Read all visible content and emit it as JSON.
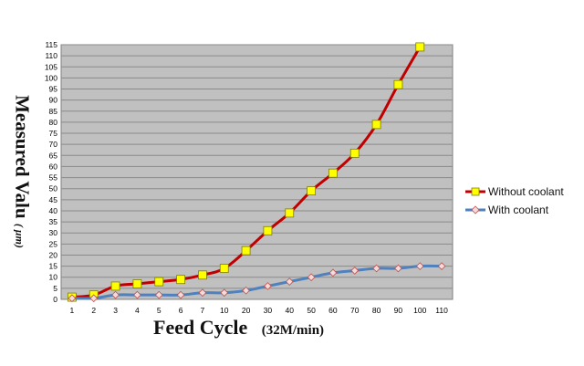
{
  "chart_data": {
    "type": "line",
    "title": "",
    "xlabel": "Feed Cycle",
    "xlabel_unit": "(32M/min)",
    "ylabel": "Measured Valu",
    "ylabel_unit": "( μm)",
    "categories": [
      "1",
      "2",
      "3",
      "4",
      "5",
      "6",
      "7",
      "10",
      "20",
      "30",
      "40",
      "50",
      "60",
      "70",
      "80",
      "90",
      "100",
      "110"
    ],
    "y_ticks": [
      0,
      5,
      10,
      15,
      20,
      25,
      30,
      35,
      40,
      45,
      50,
      55,
      60,
      65,
      70,
      75,
      80,
      85,
      90,
      95,
      100,
      105,
      110,
      115
    ],
    "ylim": [
      0,
      115
    ],
    "grid": true,
    "legend_position": "right",
    "series": [
      {
        "name": "Without  coolant",
        "color": "#c00000",
        "marker": "square",
        "marker_color": "#ffff00",
        "values": [
          1,
          2,
          6,
          7,
          8,
          9,
          11,
          14,
          22,
          31,
          39,
          49,
          57,
          66,
          79,
          97,
          114,
          null
        ]
      },
      {
        "name": "With coolant",
        "color": "#4f81bd",
        "marker": "diamond",
        "marker_color": "#f2dcdb",
        "values": [
          0.5,
          0.5,
          2,
          2,
          2,
          2,
          3,
          3,
          4,
          6,
          8,
          10,
          12,
          13,
          14,
          14,
          15,
          15
        ]
      }
    ]
  }
}
